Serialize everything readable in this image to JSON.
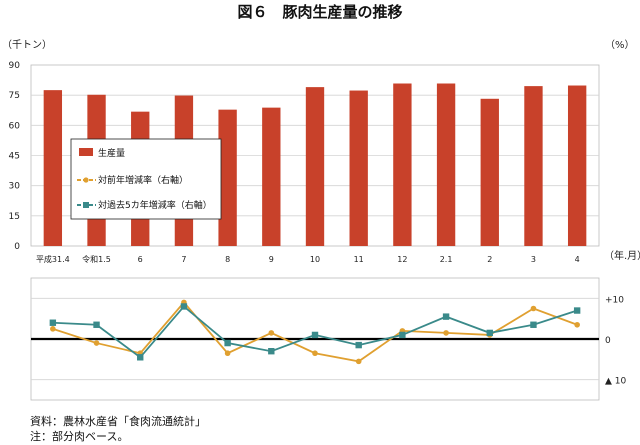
{
  "chart_data": {
    "type": "bar",
    "title": "図６　豚肉生産量の推移",
    "left_unit": "（千トン）",
    "right_unit": "（%）",
    "x_unit": "（年.月）",
    "categories": [
      "平成31.4",
      "令和1.5",
      "6",
      "7",
      "8",
      "9",
      "10",
      "11",
      "12",
      "2.1",
      "2",
      "3",
      "4"
    ],
    "ylim": [
      0,
      90
    ],
    "yticks": [
      "0",
      "15",
      "30",
      "45",
      "60",
      "75",
      "90"
    ],
    "y2ticks": [
      "+10",
      "0",
      "▲ 10"
    ],
    "y2lim": [
      -15,
      15
    ],
    "grid": true,
    "legend_position": "upper-left",
    "series": [
      {
        "name": "生産量",
        "kind": "bar",
        "color": "#c8412a",
        "values": [
          77.5,
          75.2,
          66.8,
          74.8,
          67.8,
          68.8,
          79.0,
          77.3,
          80.8,
          80.8,
          73.2,
          79.5,
          79.8
        ]
      },
      {
        "name": "対前年増減率（右軸）",
        "kind": "line",
        "color": "#e0a030",
        "values": [
          2.5,
          -1.0,
          -3.5,
          9.0,
          -3.5,
          1.5,
          -3.5,
          -5.5,
          2.0,
          1.5,
          1.0,
          7.5,
          3.5
        ]
      },
      {
        "name": "対過去5カ年増減率（右軸）",
        "kind": "line",
        "color": "#3a8a8a",
        "values": [
          4.0,
          3.5,
          -4.5,
          8.0,
          -1.0,
          -3.0,
          1.0,
          -1.5,
          1.0,
          5.5,
          1.5,
          3.5,
          7.0
        ]
      }
    ]
  },
  "notes": {
    "source": "資料：農林水産省「食肉流通統計」",
    "note": "注：部分肉ベース。"
  }
}
